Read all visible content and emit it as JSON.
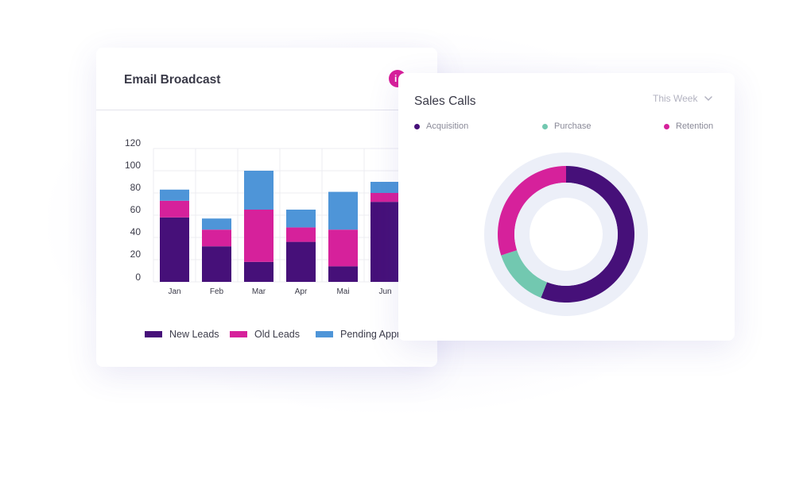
{
  "email_card": {
    "title": "Email Broadcast",
    "badge": "i"
  },
  "sales_card": {
    "title": "Sales Calls",
    "period": "This Week"
  },
  "colors": {
    "new_leads": "#461079",
    "old_leads": "#d6219b",
    "pending": "#4e95d8",
    "acquisition": "#461079",
    "purchase": "#72c8b0",
    "retention": "#d6219b",
    "donut_track": "#eceff8"
  },
  "chart_data": [
    {
      "type": "bar",
      "stacked": true,
      "categories": [
        "Jan",
        "Feb",
        "Mar",
        "Apr",
        "Mai",
        "Jun"
      ],
      "series": [
        {
          "name": "New Leads",
          "values": [
            58,
            32,
            18,
            36,
            14,
            72
          ]
        },
        {
          "name": "Old Leads",
          "values": [
            15,
            15,
            47,
            13,
            33,
            8
          ]
        },
        {
          "name": "Pending Appr",
          "values": [
            10,
            10,
            35,
            16,
            34,
            10
          ]
        }
      ],
      "yticks": [
        0,
        20,
        40,
        60,
        80,
        100,
        120
      ],
      "ylim": [
        0,
        120
      ],
      "grid": true,
      "legend": "bottom"
    },
    {
      "type": "pie",
      "donut": true,
      "categories": [
        "Acquisition",
        "Purchase",
        "Retention"
      ],
      "values": [
        56,
        14,
        30
      ]
    }
  ]
}
